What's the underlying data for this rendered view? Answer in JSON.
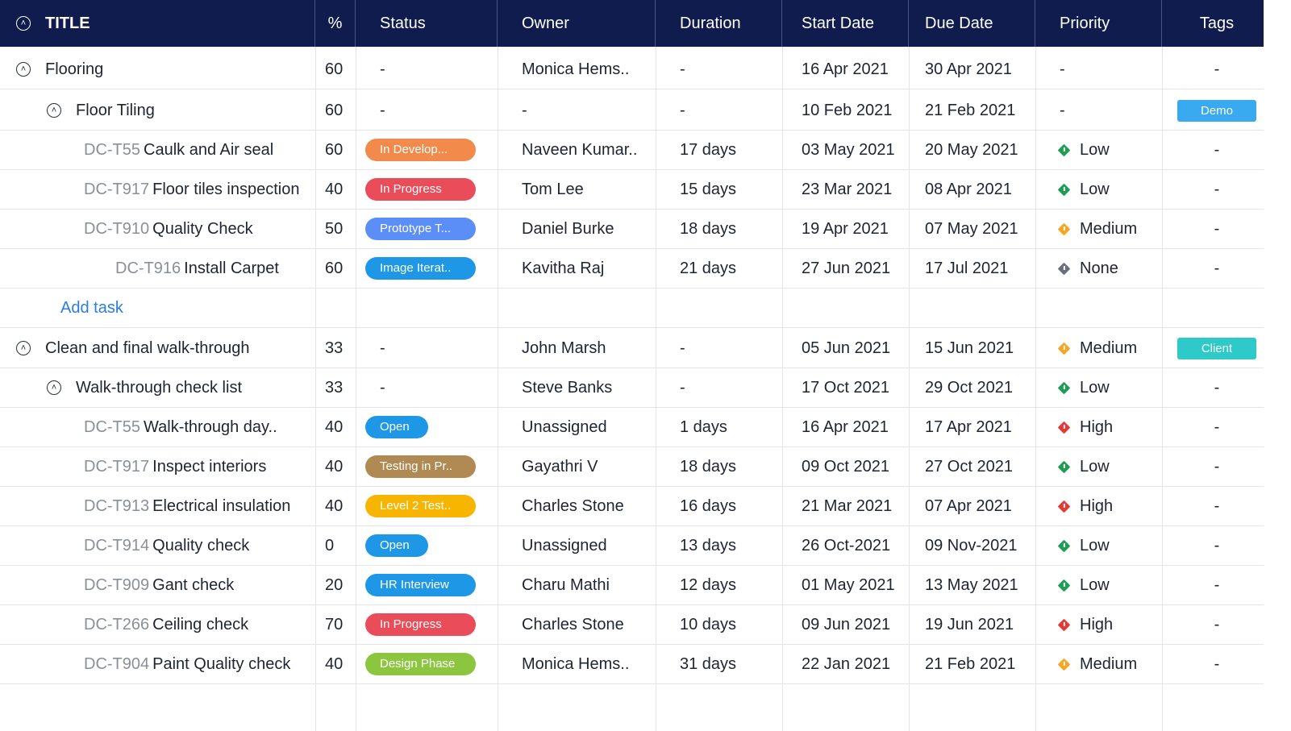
{
  "header": {
    "title": "TITLE",
    "pct": "%",
    "status": "Status",
    "owner": "Owner",
    "duration": "Duration",
    "start": "Start Date",
    "due": "Due Date",
    "priority": "Priority",
    "tags": "Tags"
  },
  "colors": {
    "header_bg": "#0f1c4d",
    "priority_low": "#1f9d55",
    "priority_medium": "#f5a623",
    "priority_high": "#e53935",
    "priority_none": "#6b6f7b",
    "tag_demo": "#39a9f0",
    "tag_client": "#2ec9c9"
  },
  "add_task_label": "Add task",
  "rows": [
    {
      "kind": "group",
      "level": 0,
      "title": "Flooring",
      "pct": "60",
      "status": "-",
      "owner": "Monica Hems..",
      "duration": "-",
      "start": "16 Apr 2021",
      "due": "30 Apr 2021",
      "priority": "-",
      "tag": "-"
    },
    {
      "kind": "group",
      "level": 1,
      "title": "Floor Tiling",
      "pct": "60",
      "status": "-",
      "owner": "-",
      "duration": "-",
      "start": "10 Feb 2021",
      "due": "21 Feb 2021",
      "priority": "-",
      "tag": "Demo",
      "tag_color": "#39a9f0"
    },
    {
      "kind": "task",
      "level": 2,
      "id": "DC-T55",
      "title": "Caulk and Air seal",
      "pct": "60",
      "status": "In Develop...",
      "status_color": "#f18a4a",
      "owner": "Naveen Kumar..",
      "duration": "17 days",
      "start": "03 May 2021",
      "due": "20 May 2021",
      "priority": "Low",
      "priority_color": "#1f9d55",
      "tag": "-"
    },
    {
      "kind": "task",
      "level": 2,
      "id": "DC-T917",
      "title": "Floor tiles inspection",
      "pct": "40",
      "status": "In Progress",
      "status_color": "#eb4c5a",
      "owner": "Tom Lee",
      "duration": "15 days",
      "start": "23 Mar 2021",
      "due": "08 Apr 2021",
      "priority": "Low",
      "priority_color": "#1f9d55",
      "tag": "-"
    },
    {
      "kind": "task",
      "level": 2,
      "id": "DC-T910",
      "title": "Quality Check",
      "pct": "50",
      "status": "Prototype T...",
      "status_color": "#5b8ef6",
      "owner": "Daniel Burke",
      "duration": "18 days",
      "start": "19 Apr 2021",
      "due": "07 May 2021",
      "priority": "Medium",
      "priority_color": "#f5a623",
      "tag": "-"
    },
    {
      "kind": "task",
      "level": 3,
      "id": "DC-T916",
      "title": "Install Carpet",
      "pct": "60",
      "status": "Image Iterat..",
      "status_color": "#1e98e6",
      "owner": "Kavitha Raj",
      "duration": "21 days",
      "start": "27 Jun 2021",
      "due": "17 Jul 2021",
      "priority": "None",
      "priority_color": "#6b6f7b",
      "tag": "-"
    },
    {
      "kind": "add"
    },
    {
      "kind": "group",
      "level": 0,
      "title": "Clean and final walk-through",
      "pct": "33",
      "status": "-",
      "owner": "John Marsh",
      "duration": "-",
      "start": "05 Jun 2021",
      "due": "15 Jun 2021",
      "priority": "Medium",
      "priority_color": "#f5a623",
      "tag": "Client",
      "tag_color": "#2ec9c9"
    },
    {
      "kind": "group",
      "level": 1,
      "title": "Walk-through check list",
      "pct": "33",
      "status": "-",
      "owner": "Steve Banks",
      "duration": "-",
      "start": "17 Oct 2021",
      "due": "29 Oct 2021",
      "priority": "Low",
      "priority_color": "#1f9d55",
      "tag": "-"
    },
    {
      "kind": "task",
      "level": 2,
      "id": "DC-T55",
      "title": "Walk-through day..",
      "pct": "40",
      "status": "Open",
      "status_color": "#1e98e6",
      "owner": "Unassigned",
      "duration": "1 days",
      "start": "16 Apr 2021",
      "due": "17 Apr 2021",
      "priority": "High",
      "priority_color": "#e53935",
      "tag": "-"
    },
    {
      "kind": "task",
      "level": 2,
      "id": "DC-T917",
      "title": "Inspect interiors",
      "pct": "40",
      "status": "Testing in Pr..",
      "status_color": "#b08a52",
      "owner": "Gayathri V",
      "duration": "18 days",
      "start": "09 Oct 2021",
      "due": "27 Oct 2021",
      "priority": "Low",
      "priority_color": "#1f9d55",
      "tag": "-"
    },
    {
      "kind": "task",
      "level": 2,
      "id": "DC-T913",
      "title": "Electrical insulation",
      "pct": "40",
      "status": "Level 2 Test..",
      "status_color": "#f7b500",
      "owner": "Charles Stone",
      "duration": "16 days",
      "start": "21 Mar 2021",
      "due": "07 Apr 2021",
      "priority": "High",
      "priority_color": "#e53935",
      "tag": "-"
    },
    {
      "kind": "task",
      "level": 2,
      "id": "DC-T914",
      "title": "Quality check",
      "pct": "0",
      "status": "Open",
      "status_color": "#1e98e6",
      "owner": "Unassigned",
      "duration": "13 days",
      "start": "26 Oct-2021",
      "due": "09 Nov-2021",
      "priority": "Low",
      "priority_color": "#1f9d55",
      "tag": "-"
    },
    {
      "kind": "task",
      "level": 2,
      "id": "DC-T909",
      "title": "Gant check",
      "pct": "20",
      "status": "HR Interview",
      "status_color": "#1e98e6",
      "owner": "Charu Mathi",
      "duration": "12 days",
      "start": "01 May 2021",
      "due": "13 May 2021",
      "priority": "Low",
      "priority_color": "#1f9d55",
      "tag": "-"
    },
    {
      "kind": "task",
      "level": 2,
      "id": "DC-T266",
      "title": "Ceiling check",
      "pct": "70",
      "status": "In Progress",
      "status_color": "#eb4c5a",
      "owner": "Charles Stone",
      "duration": "10 days",
      "start": "09 Jun 2021",
      "due": "19 Jun 2021",
      "priority": "High",
      "priority_color": "#e53935",
      "tag": "-"
    },
    {
      "kind": "task",
      "level": 2,
      "id": "DC-T904",
      "title": "Paint Quality check",
      "pct": "40",
      "status": "Design Phase",
      "status_color": "#8cc63f",
      "owner": "Monica Hems..",
      "duration": "31 days",
      "start": "22 Jan 2021",
      "due": "21 Feb 2021",
      "priority": "Medium",
      "priority_color": "#f5a623",
      "tag": "-"
    }
  ]
}
